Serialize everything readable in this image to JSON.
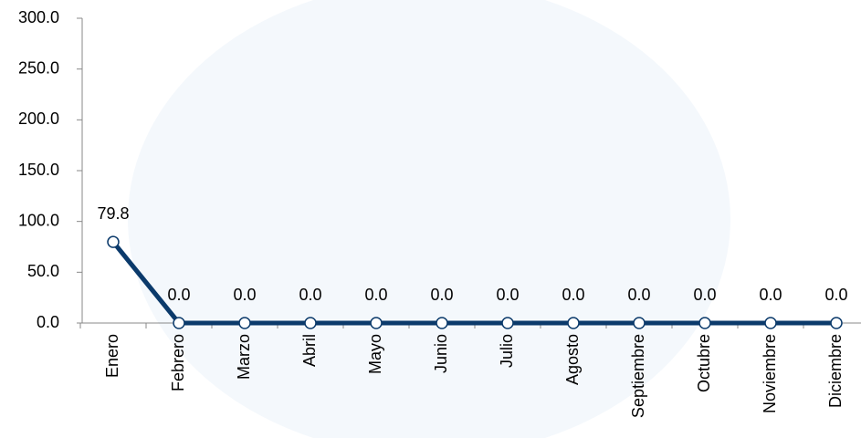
{
  "chart_data": {
    "type": "line",
    "categories": [
      "Enero",
      "Febrero",
      "Marzo",
      "Abril",
      "Mayo",
      "Junio",
      "Julio",
      "Agosto",
      "Septiembre",
      "Octubre",
      "Noviembre",
      "Diciembre"
    ],
    "values": [
      79.8,
      0,
      0,
      0,
      0,
      0,
      0,
      0,
      0,
      0,
      0,
      0
    ],
    "value_labels": [
      "79.8",
      "0.0",
      "0.0",
      "0.0",
      "0.0",
      "0.0",
      "0.0",
      "0.0",
      "0.0",
      "0.0",
      "0.0",
      "0.0"
    ],
    "color": "#0b3a6b",
    "ylim": [
      0,
      300
    ],
    "yticks": [
      {
        "value": 0,
        "label": "0.0"
      },
      {
        "value": 50,
        "label": "50.0"
      },
      {
        "value": 100,
        "label": "100.0"
      },
      {
        "value": 150,
        "label": "150.0"
      },
      {
        "value": 200,
        "label": "200.0"
      },
      {
        "value": 250,
        "label": "250.0"
      },
      {
        "value": 300,
        "label": "300.0"
      }
    ]
  }
}
